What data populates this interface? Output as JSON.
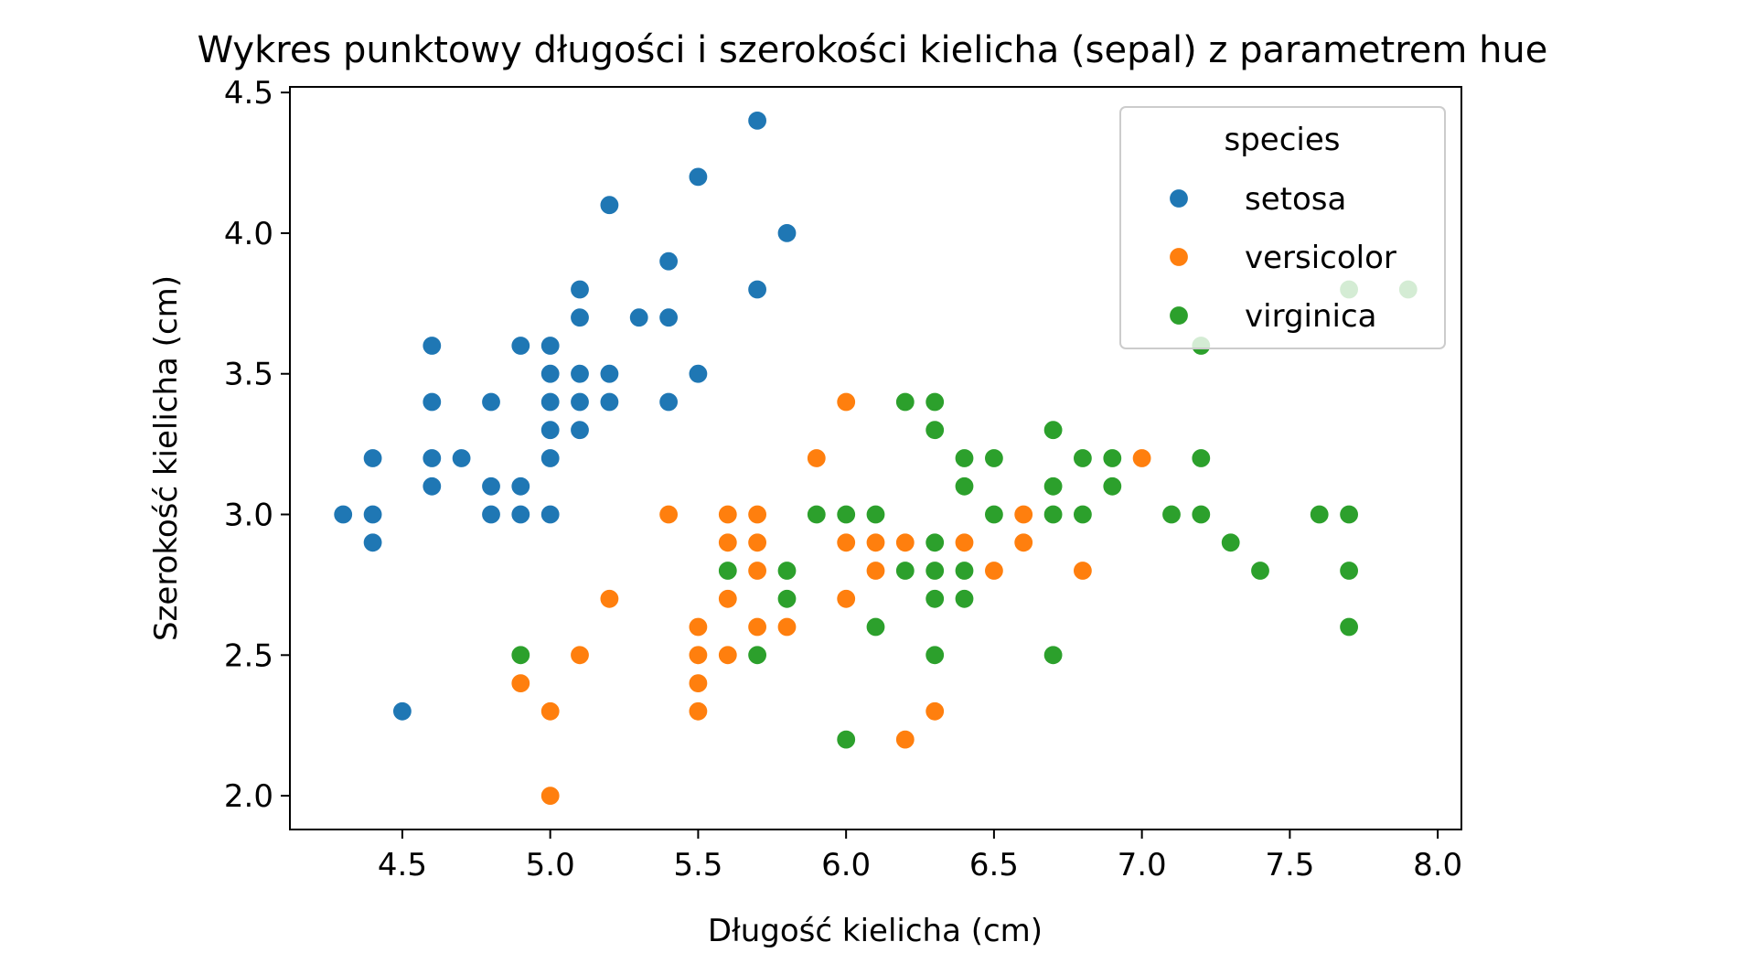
{
  "chart_data": {
    "type": "scatter",
    "title": "Wykres punktowy długości i szerokości kielicha (sepal) z parametrem hue",
    "xlabel": "Długość kielicha (cm)",
    "ylabel": "Szerokość kielicha (cm)",
    "xlim": [
      4.12,
      8.08
    ],
    "ylim": [
      1.88,
      4.52
    ],
    "xticks": [
      4.5,
      5.0,
      5.5,
      6.0,
      6.5,
      7.0,
      7.5,
      8.0
    ],
    "xtick_labels": [
      "4.5",
      "5.0",
      "5.5",
      "6.0",
      "6.5",
      "7.0",
      "7.5",
      "8.0"
    ],
    "yticks": [
      2.0,
      2.5,
      3.0,
      3.5,
      4.0,
      4.5
    ],
    "ytick_labels": [
      "2.0",
      "2.5",
      "3.0",
      "3.5",
      "4.0",
      "4.5"
    ],
    "grid": false,
    "legend": {
      "title": "species",
      "placement": "top-right"
    },
    "series": [
      {
        "name": "setosa",
        "color": "#1f77b4",
        "points": [
          [
            4.3,
            3.0
          ],
          [
            4.4,
            3.2
          ],
          [
            4.4,
            3.0
          ],
          [
            4.4,
            2.9
          ],
          [
            4.5,
            2.3
          ],
          [
            4.6,
            3.6
          ],
          [
            4.6,
            3.4
          ],
          [
            4.6,
            3.2
          ],
          [
            4.6,
            3.1
          ],
          [
            4.7,
            3.2
          ],
          [
            4.8,
            3.4
          ],
          [
            4.8,
            3.1
          ],
          [
            4.8,
            3.0
          ],
          [
            4.9,
            3.6
          ],
          [
            4.9,
            3.1
          ],
          [
            4.9,
            3.0
          ],
          [
            5.0,
            3.6
          ],
          [
            5.0,
            3.5
          ],
          [
            5.0,
            3.4
          ],
          [
            5.0,
            3.3
          ],
          [
            5.0,
            3.2
          ],
          [
            5.0,
            3.0
          ],
          [
            5.1,
            3.8
          ],
          [
            5.1,
            3.7
          ],
          [
            5.1,
            3.5
          ],
          [
            5.1,
            3.4
          ],
          [
            5.1,
            3.3
          ],
          [
            5.2,
            4.1
          ],
          [
            5.2,
            3.5
          ],
          [
            5.2,
            3.4
          ],
          [
            5.3,
            3.7
          ],
          [
            5.4,
            3.9
          ],
          [
            5.4,
            3.7
          ],
          [
            5.4,
            3.4
          ],
          [
            5.5,
            4.2
          ],
          [
            5.5,
            3.5
          ],
          [
            5.7,
            4.4
          ],
          [
            5.7,
            3.8
          ],
          [
            5.8,
            4.0
          ]
        ]
      },
      {
        "name": "versicolor",
        "color": "#ff7f0e",
        "points": [
          [
            4.9,
            2.4
          ],
          [
            5.0,
            2.3
          ],
          [
            5.0,
            2.0
          ],
          [
            5.1,
            2.5
          ],
          [
            5.2,
            2.7
          ],
          [
            5.4,
            3.0
          ],
          [
            5.5,
            2.6
          ],
          [
            5.5,
            2.5
          ],
          [
            5.5,
            2.4
          ],
          [
            5.5,
            2.3
          ],
          [
            5.6,
            3.0
          ],
          [
            5.6,
            2.9
          ],
          [
            5.6,
            2.7
          ],
          [
            5.6,
            2.5
          ],
          [
            5.7,
            3.0
          ],
          [
            5.7,
            2.9
          ],
          [
            5.7,
            2.8
          ],
          [
            5.7,
            2.6
          ],
          [
            5.8,
            2.7
          ],
          [
            5.8,
            2.6
          ],
          [
            5.9,
            3.2
          ],
          [
            6.0,
            3.4
          ],
          [
            6.0,
            2.9
          ],
          [
            6.0,
            2.7
          ],
          [
            6.1,
            2.9
          ],
          [
            6.1,
            2.8
          ],
          [
            6.2,
            2.9
          ],
          [
            6.2,
            2.2
          ],
          [
            6.3,
            2.3
          ],
          [
            6.4,
            2.9
          ],
          [
            6.5,
            2.8
          ],
          [
            6.6,
            3.0
          ],
          [
            6.6,
            2.9
          ],
          [
            6.8,
            2.8
          ],
          [
            7.0,
            3.2
          ]
        ]
      },
      {
        "name": "virginica",
        "color": "#2ca02c",
        "points": [
          [
            4.9,
            2.5
          ],
          [
            5.6,
            2.8
          ],
          [
            5.7,
            2.5
          ],
          [
            5.8,
            2.8
          ],
          [
            5.8,
            2.7
          ],
          [
            5.9,
            3.0
          ],
          [
            6.0,
            3.0
          ],
          [
            6.0,
            2.2
          ],
          [
            6.1,
            3.0
          ],
          [
            6.1,
            2.6
          ],
          [
            6.2,
            3.4
          ],
          [
            6.2,
            2.8
          ],
          [
            6.3,
            3.4
          ],
          [
            6.3,
            3.3
          ],
          [
            6.3,
            2.9
          ],
          [
            6.3,
            2.8
          ],
          [
            6.3,
            2.7
          ],
          [
            6.3,
            2.5
          ],
          [
            6.4,
            3.2
          ],
          [
            6.4,
            3.1
          ],
          [
            6.4,
            2.8
          ],
          [
            6.4,
            2.7
          ],
          [
            6.5,
            3.2
          ],
          [
            6.5,
            3.0
          ],
          [
            6.7,
            3.3
          ],
          [
            6.7,
            3.1
          ],
          [
            6.7,
            3.0
          ],
          [
            6.7,
            2.5
          ],
          [
            6.8,
            3.2
          ],
          [
            6.8,
            3.0
          ],
          [
            6.9,
            3.2
          ],
          [
            6.9,
            3.1
          ],
          [
            7.1,
            3.0
          ],
          [
            7.2,
            3.6
          ],
          [
            7.2,
            3.2
          ],
          [
            7.2,
            3.0
          ],
          [
            7.3,
            2.9
          ],
          [
            7.4,
            2.8
          ],
          [
            7.6,
            3.0
          ],
          [
            7.7,
            3.8
          ],
          [
            7.7,
            3.0
          ],
          [
            7.7,
            2.8
          ],
          [
            7.7,
            2.6
          ],
          [
            7.9,
            3.8
          ]
        ]
      }
    ]
  }
}
